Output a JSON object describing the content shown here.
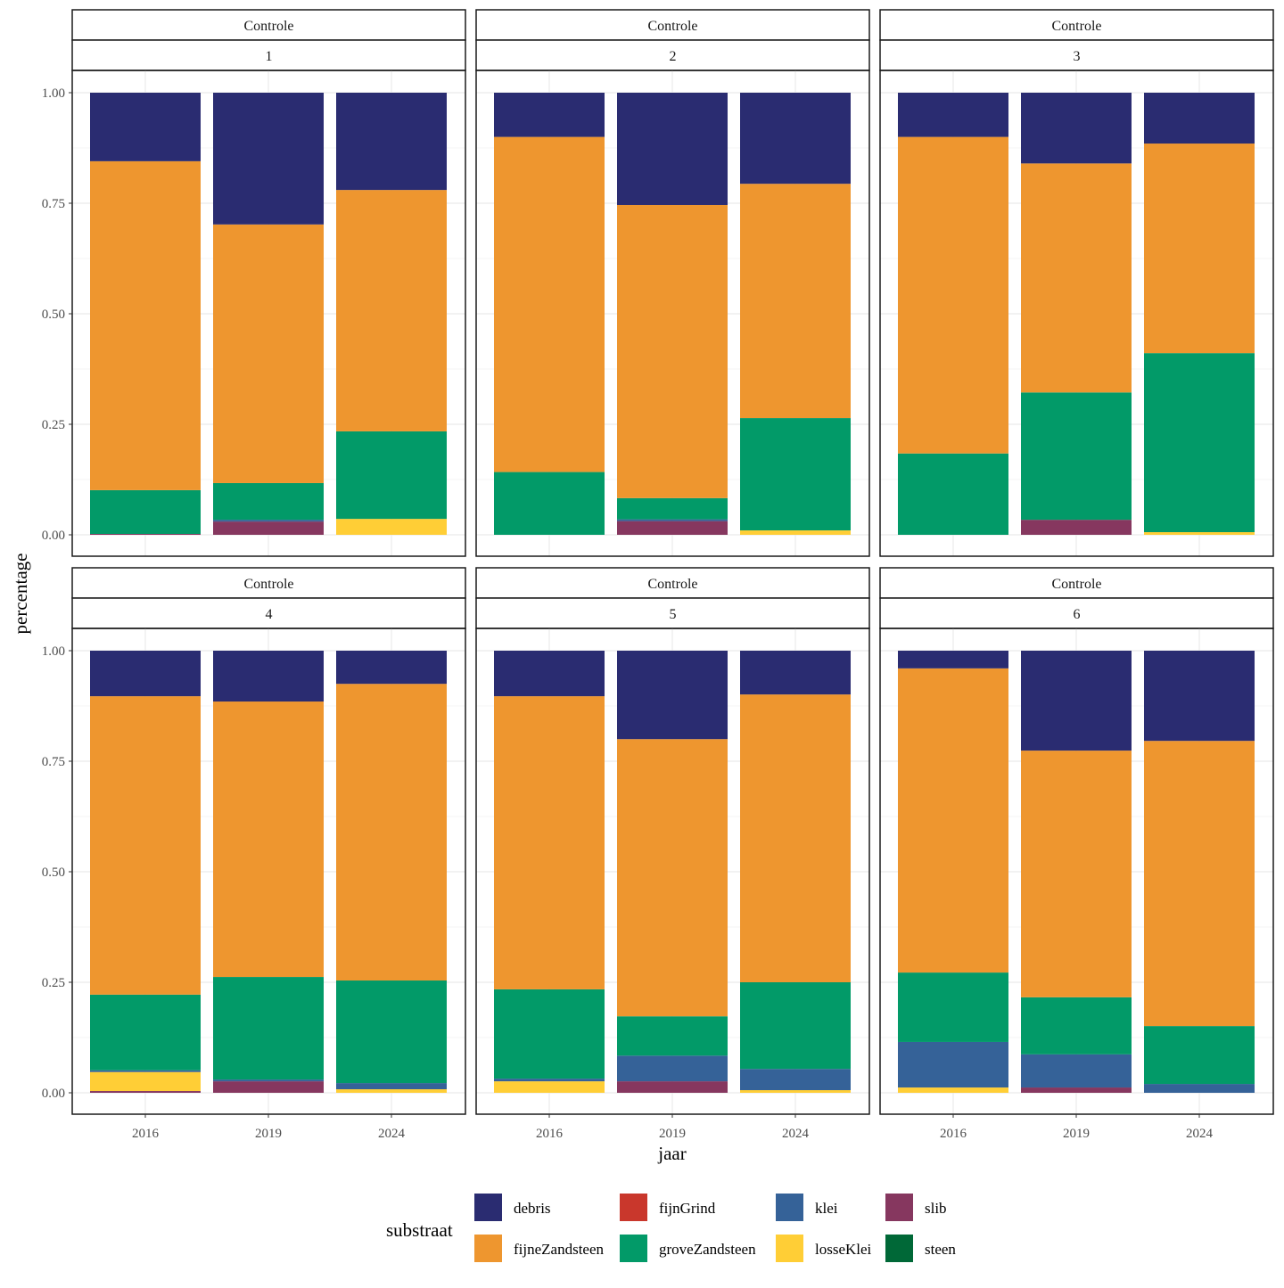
{
  "chart_data": {
    "type": "bar",
    "stacked": true,
    "xlabel": "jaar",
    "ylabel": "percentage",
    "ylim": [
      0,
      1
    ],
    "yticks": [
      "0.00",
      "0.25",
      "0.50",
      "0.75",
      "1.00"
    ],
    "ytick_values": [
      0,
      0.25,
      0.5,
      0.75,
      1
    ],
    "categories": [
      "2016",
      "2019",
      "2024"
    ],
    "legend": {
      "title": "substraat",
      "placement": "bottom",
      "entries": [
        "debris",
        "fijneZandsteen",
        "fijnGrind",
        "groveZandsteen",
        "klei",
        "losseKlei",
        "slib",
        "steen"
      ]
    },
    "colors": {
      "debris": "#2a2c71",
      "fijneZandsteen": "#ee962f",
      "fijnGrind": "#c9372c",
      "groveZandsteen": "#029a68",
      "klei": "#356298",
      "losseKlei": "#ffce36",
      "slib": "#86375f",
      "steen": "#006837"
    },
    "stack_order_bottom_up": [
      "steen",
      "slib",
      "losseKlei",
      "klei",
      "groveZandsteen",
      "fijnGrind",
      "fijneZandsteen",
      "debris"
    ],
    "panels": [
      {
        "strip1": "Controle",
        "strip2": "1",
        "bars": [
          {
            "slib": 0.002,
            "groveZandsteen": 0.099,
            "fijneZandsteen": 0.744,
            "debris": 0.155
          },
          {
            "slib": 0.03,
            "klei": 0.004,
            "groveZandsteen": 0.083,
            "fijneZandsteen": 0.585,
            "debris": 0.298
          },
          {
            "losseKlei": 0.036,
            "groveZandsteen": 0.198,
            "fijneZandsteen": 0.546,
            "debris": 0.22
          }
        ]
      },
      {
        "strip1": "Controle",
        "strip2": "2",
        "bars": [
          {
            "groveZandsteen": 0.142,
            "fijneZandsteen": 0.758,
            "debris": 0.1
          },
          {
            "slib": 0.031,
            "klei": 0.004,
            "groveZandsteen": 0.048,
            "fijneZandsteen": 0.663,
            "debris": 0.254
          },
          {
            "losseKlei": 0.01,
            "groveZandsteen": 0.254,
            "fijneZandsteen": 0.53,
            "debris": 0.206
          }
        ]
      },
      {
        "strip1": "Controle",
        "strip2": "3",
        "bars": [
          {
            "groveZandsteen": 0.184,
            "fijneZandsteen": 0.716,
            "debris": 0.1
          },
          {
            "slib": 0.034,
            "groveZandsteen": 0.288,
            "fijneZandsteen": 0.518,
            "debris": 0.16
          },
          {
            "losseKlei": 0.006,
            "groveZandsteen": 0.405,
            "fijneZandsteen": 0.474,
            "debris": 0.115
          }
        ]
      },
      {
        "strip1": "Controle",
        "strip2": "4",
        "bars": [
          {
            "slib": 0.004,
            "losseKlei": 0.043,
            "klei": 0.004,
            "groveZandsteen": 0.171,
            "fijneZandsteen": 0.675,
            "debris": 0.103
          },
          {
            "slib": 0.026,
            "klei": 0.004,
            "groveZandsteen": 0.232,
            "fijneZandsteen": 0.623,
            "debris": 0.115
          },
          {
            "losseKlei": 0.008,
            "klei": 0.014,
            "groveZandsteen": 0.232,
            "fijneZandsteen": 0.671,
            "debris": 0.075
          }
        ]
      },
      {
        "strip1": "Controle",
        "strip2": "5",
        "bars": [
          {
            "losseKlei": 0.026,
            "klei": 0.006,
            "groveZandsteen": 0.202,
            "fijneZandsteen": 0.663,
            "debris": 0.103
          },
          {
            "slib": 0.026,
            "klei": 0.058,
            "groveZandsteen": 0.089,
            "fijneZandsteen": 0.627,
            "debris": 0.2
          },
          {
            "losseKlei": 0.006,
            "klei": 0.048,
            "groveZandsteen": 0.196,
            "fijneZandsteen": 0.651,
            "debris": 0.099
          }
        ]
      },
      {
        "strip1": "Controle",
        "strip2": "6",
        "bars": [
          {
            "losseKlei": 0.012,
            "klei": 0.103,
            "groveZandsteen": 0.157,
            "fijneZandsteen": 0.688,
            "debris": 0.04
          },
          {
            "slib": 0.012,
            "klei": 0.075,
            "groveZandsteen": 0.129,
            "fijneZandsteen": 0.558,
            "debris": 0.226
          },
          {
            "klei": 0.02,
            "groveZandsteen": 0.131,
            "fijneZandsteen": 0.645,
            "debris": 0.204
          }
        ]
      }
    ]
  }
}
